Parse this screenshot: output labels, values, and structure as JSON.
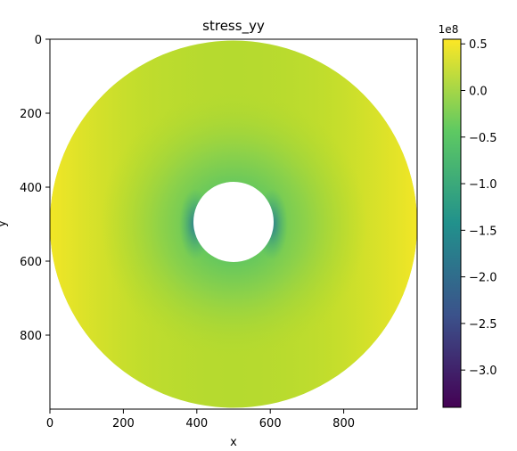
{
  "chart_data": {
    "type": "heatmap",
    "title": "stress_yy",
    "xlabel": "x",
    "ylabel": "y",
    "xlim": [
      0,
      1000
    ],
    "ylim": [
      1000,
      0
    ],
    "x_ticks": [
      0,
      200,
      400,
      600,
      800
    ],
    "y_ticks": [
      0,
      200,
      400,
      600,
      800
    ],
    "domain": {
      "shape": "annulus",
      "center": [
        500,
        500
      ],
      "outer_radius": 500,
      "inner_radius": 110
    },
    "colormap": "viridis",
    "colorbar": {
      "label": "1e8",
      "range": [
        -3.4,
        0.55
      ],
      "ticks": [
        0.5,
        0.0,
        -0.5,
        -1.0,
        -1.5,
        -2.0,
        -2.5,
        -3.0
      ],
      "tick_labels": [
        "0.5",
        "0.0",
        "−0.5",
        "−1.0",
        "−1.5",
        "−2.0",
        "−2.5",
        "−3.0"
      ]
    },
    "colormap_stops": [
      "#440154",
      "#3b528b",
      "#21918c",
      "#5ec962",
      "#fde725"
    ]
  }
}
